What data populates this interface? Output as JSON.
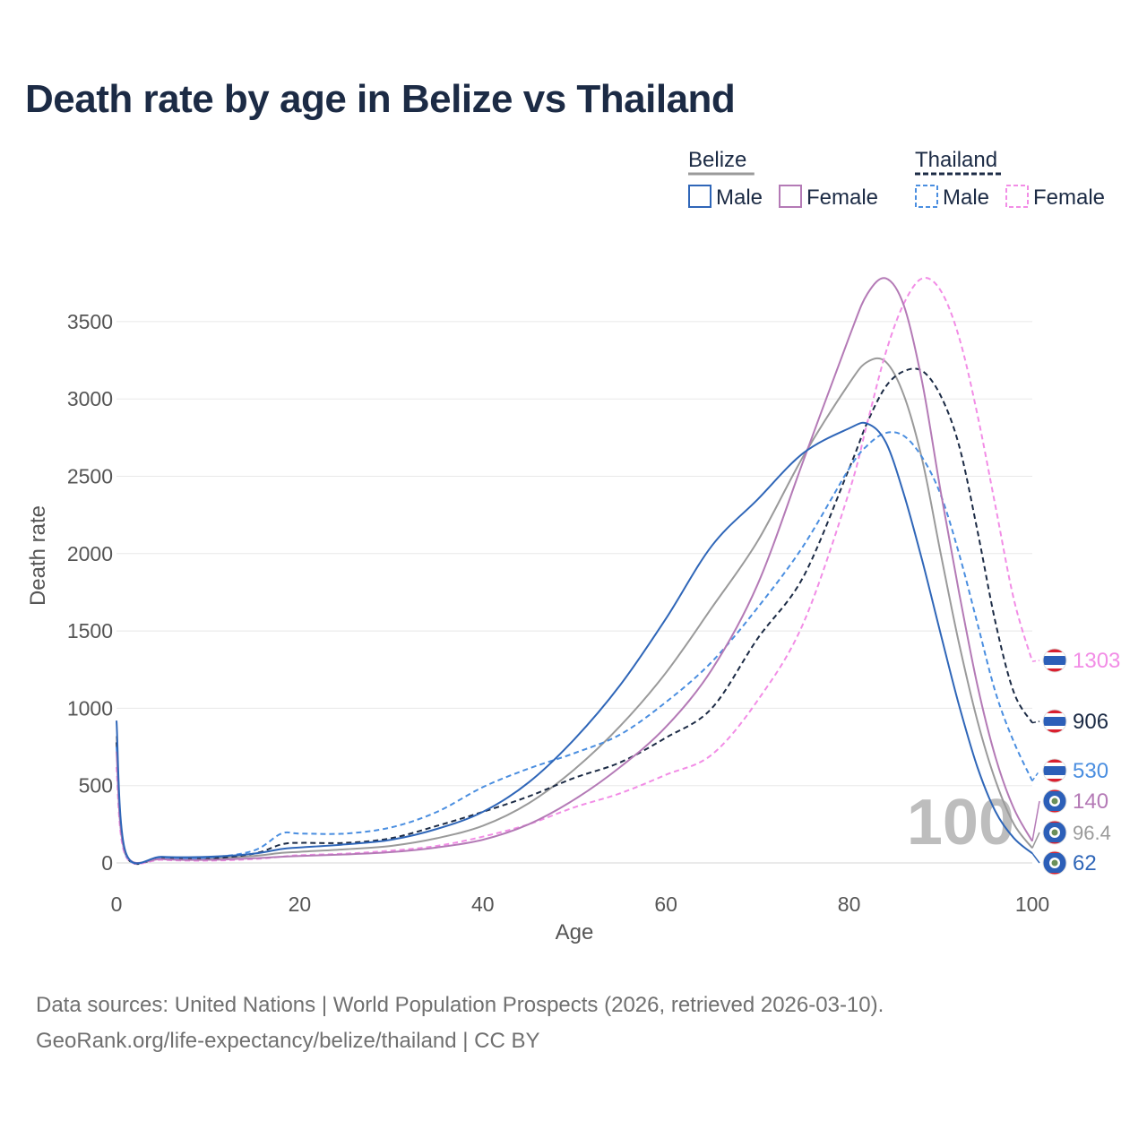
{
  "title": "Death rate by age in Belize vs Thailand",
  "legend": {
    "groups": [
      {
        "name": "Belize",
        "entries": [
          {
            "label": "Male",
            "color": "#2f66b8",
            "dash": false
          },
          {
            "label": "Female",
            "color": "#b47ab6",
            "dash": false
          }
        ]
      },
      {
        "name": "Thailand",
        "entries": [
          {
            "label": "Male",
            "color": "#4a8ee0",
            "dash": true
          },
          {
            "label": "Female",
            "color": "#f28de6",
            "dash": true
          }
        ]
      }
    ]
  },
  "source_line1": "Data sources: United Nations | World Population Prospects (2026, retrieved 2026-03-10).",
  "source_line2": "GeoRank.org/life-expectancy/belize/thailand | CC BY",
  "chart_data": {
    "type": "line",
    "title": "Death rate by age in Belize vs Thailand",
    "xlabel": "Age",
    "ylabel": "Death rate",
    "xlim": [
      0,
      100
    ],
    "ylim": [
      0,
      3800
    ],
    "xticks": [
      0,
      20,
      40,
      60,
      80,
      100
    ],
    "yticks": [
      0,
      500,
      1000,
      1500,
      2000,
      2500,
      3000,
      3500
    ],
    "grid": true,
    "current_age_label": "100",
    "x": [
      0,
      1,
      5,
      10,
      15,
      18,
      20,
      25,
      30,
      35,
      40,
      45,
      50,
      55,
      60,
      65,
      70,
      75,
      80,
      82,
      84,
      86,
      88,
      90,
      92,
      94,
      96,
      98,
      100
    ],
    "series": [
      {
        "name": "Belize Male",
        "color": "#2f66b8",
        "dash": false,
        "end_label": "62",
        "values": [
          920,
          70,
          40,
          40,
          60,
          90,
          100,
          120,
          150,
          220,
          330,
          520,
          800,
          1150,
          1580,
          2050,
          2350,
          2650,
          2810,
          2840,
          2720,
          2380,
          1950,
          1480,
          1020,
          620,
          330,
          160,
          62
        ]
      },
      {
        "name": "Belize Female",
        "color": "#b47ab6",
        "dash": false,
        "end_label": "140",
        "values": [
          720,
          60,
          25,
          20,
          30,
          40,
          45,
          55,
          70,
          100,
          150,
          250,
          410,
          620,
          880,
          1250,
          1800,
          2600,
          3400,
          3680,
          3780,
          3600,
          3100,
          2400,
          1750,
          1150,
          680,
          350,
          140
        ]
      },
      {
        "name": "Belize Total",
        "color": "#9a9a9a",
        "dash": false,
        "end_label": "96.4",
        "values": [
          820,
          65,
          32,
          30,
          45,
          65,
          72,
          88,
          110,
          160,
          240,
          385,
          605,
          885,
          1230,
          1650,
          2080,
          2630,
          3100,
          3240,
          3240,
          3020,
          2600,
          2000,
          1420,
          920,
          530,
          250,
          96.4
        ]
      },
      {
        "name": "Thailand Male",
        "color": "#4a8ee0",
        "dash": true,
        "end_label": "530",
        "values": [
          750,
          55,
          35,
          35,
          80,
          190,
          190,
          190,
          230,
          330,
          490,
          610,
          710,
          830,
          1040,
          1300,
          1650,
          2050,
          2550,
          2700,
          2780,
          2760,
          2620,
          2380,
          2000,
          1550,
          1100,
          780,
          530
        ]
      },
      {
        "name": "Thailand Female",
        "color": "#f28de6",
        "dash": true,
        "end_label": "1303",
        "values": [
          620,
          45,
          20,
          15,
          25,
          40,
          50,
          60,
          80,
          110,
          170,
          250,
          360,
          450,
          570,
          700,
          1050,
          1550,
          2400,
          2850,
          3300,
          3620,
          3780,
          3700,
          3400,
          2900,
          2300,
          1700,
          1303
        ]
      },
      {
        "name": "Thailand Total",
        "color": "#1c2b45",
        "dash": true,
        "end_label": "906",
        "values": [
          780,
          55,
          30,
          28,
          60,
          120,
          130,
          130,
          160,
          240,
          330,
          430,
          550,
          650,
          810,
          1000,
          1450,
          1850,
          2550,
          2850,
          3080,
          3180,
          3180,
          3020,
          2700,
          2150,
          1550,
          1100,
          906
        ]
      }
    ]
  }
}
